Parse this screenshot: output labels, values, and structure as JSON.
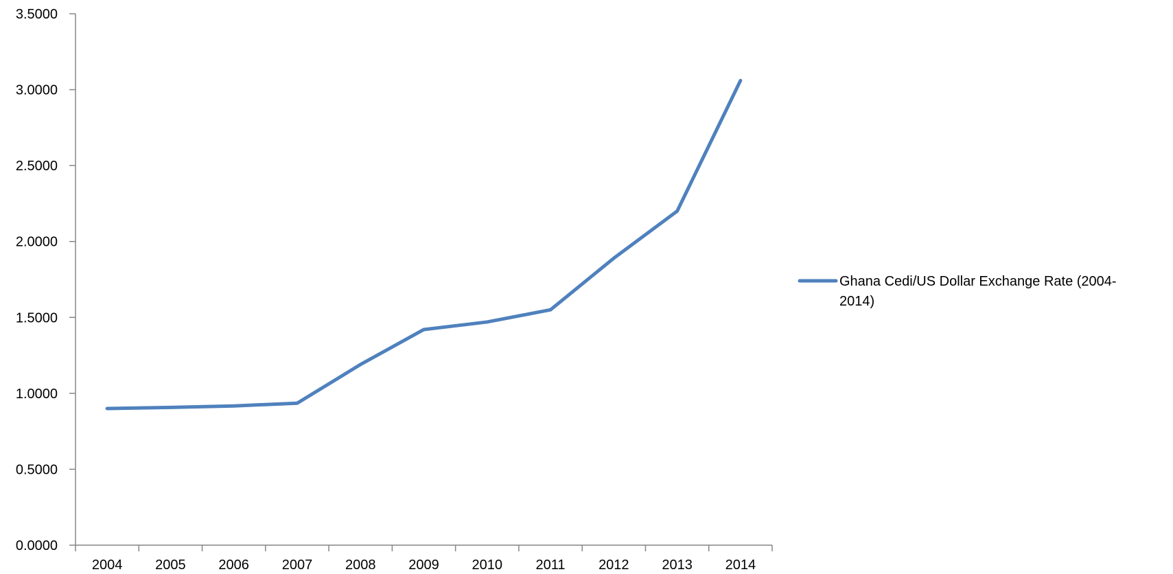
{
  "chart_data": {
    "type": "line",
    "title": "",
    "xlabel": "",
    "ylabel": "",
    "categories": [
      "2004",
      "2005",
      "2006",
      "2007",
      "2008",
      "2009",
      "2010",
      "2011",
      "2012",
      "2013",
      "2014"
    ],
    "series": [
      {
        "name": "Ghana Cedi/US Dollar Exchange Rate (2004-2014)",
        "name_lines": [
          "Ghana Cedi/US Dollar Exchange Rate (2004-",
          "2014)"
        ],
        "values": [
          0.9,
          0.907,
          0.917,
          0.935,
          1.19,
          1.42,
          1.47,
          1.55,
          1.89,
          2.2,
          3.06
        ],
        "color": "#4F81BD"
      }
    ],
    "ylim": [
      0,
      3.5
    ],
    "yticks": [
      "0.0000",
      "0.5000",
      "1.0000",
      "1.5000",
      "2.0000",
      "2.5000",
      "3.0000",
      "3.5000"
    ],
    "ytick_values": [
      0,
      0.5,
      1.0,
      1.5,
      2.0,
      2.5,
      3.0,
      3.5
    ],
    "grid": false,
    "legend_position": "right"
  },
  "colors": {
    "axis": "#868686",
    "series": "#4F81BD"
  }
}
